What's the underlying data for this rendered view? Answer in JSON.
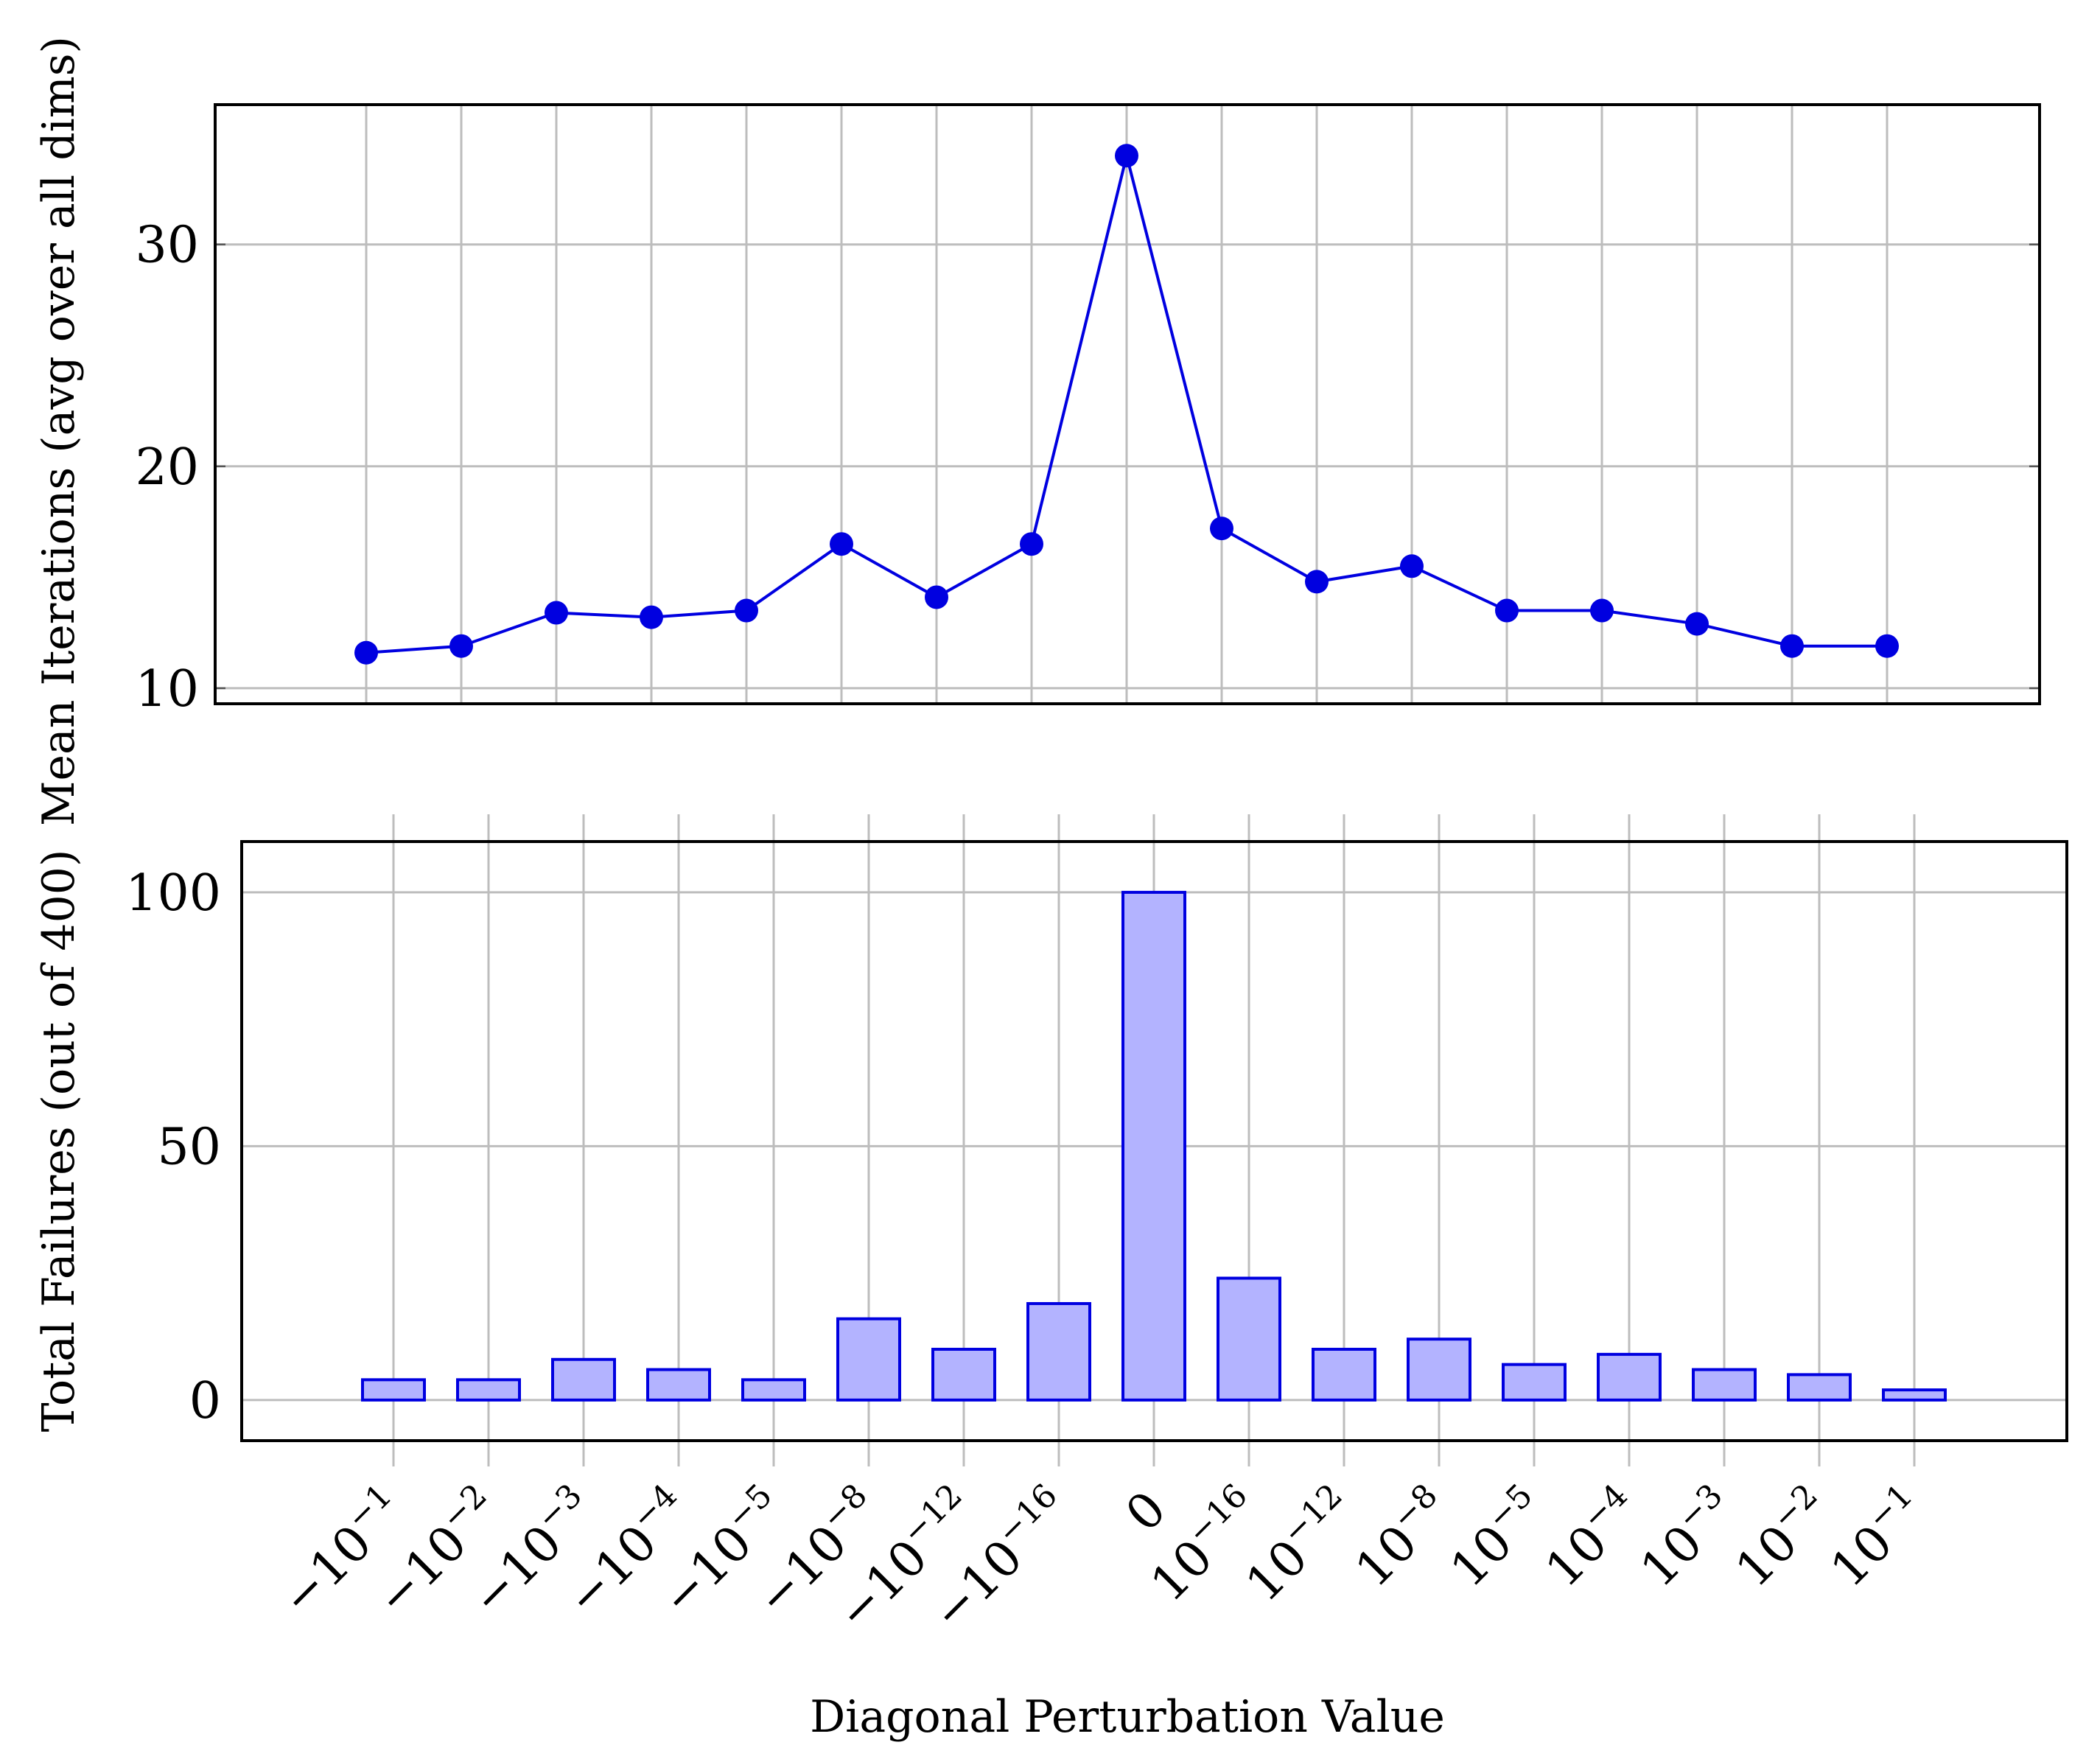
{
  "figure": {
    "xlabel": "Diagonal Perturbation Value"
  },
  "chart_data": [
    {
      "type": "line",
      "ylabel": "Mean Iterations (avg over all dims)",
      "xlabel": "",
      "categories": [
        {
          "sign": "−",
          "base": "10",
          "exp": "−1"
        },
        {
          "sign": "−",
          "base": "10",
          "exp": "−2"
        },
        {
          "sign": "−",
          "base": "10",
          "exp": "−3"
        },
        {
          "sign": "−",
          "base": "10",
          "exp": "−4"
        },
        {
          "sign": "−",
          "base": "10",
          "exp": "−5"
        },
        {
          "sign": "−",
          "base": "10",
          "exp": "−8"
        },
        {
          "sign": "−",
          "base": "10",
          "exp": "−12"
        },
        {
          "sign": "−",
          "base": "10",
          "exp": "−16"
        },
        {
          "sign": "",
          "base": "0",
          "exp": ""
        },
        {
          "sign": "",
          "base": "10",
          "exp": "−16"
        },
        {
          "sign": "",
          "base": "10",
          "exp": "−12"
        },
        {
          "sign": "",
          "base": "10",
          "exp": "−8"
        },
        {
          "sign": "",
          "base": "10",
          "exp": "−5"
        },
        {
          "sign": "",
          "base": "10",
          "exp": "−4"
        },
        {
          "sign": "",
          "base": "10",
          "exp": "−3"
        },
        {
          "sign": "",
          "base": "10",
          "exp": "−2"
        },
        {
          "sign": "",
          "base": "10",
          "exp": "−1"
        }
      ],
      "values": [
        11.6,
        11.9,
        13.4,
        13.2,
        13.5,
        16.5,
        14.1,
        16.5,
        34.0,
        17.2,
        14.8,
        15.5,
        13.5,
        13.5,
        12.9,
        11.9,
        11.9
      ],
      "ylim": [
        9.3,
        36.3
      ],
      "yticks": [
        10,
        20,
        30
      ],
      "grid": true,
      "color": "#0000e0"
    },
    {
      "type": "bar",
      "ylabel": "Total Failures (out of 400)",
      "xlabel": "Diagonal Perturbation Value",
      "values": [
        4,
        4,
        8,
        6,
        4,
        16,
        10,
        19,
        100,
        24,
        10,
        12,
        7,
        9,
        6,
        5,
        2
      ],
      "ylim": [
        -8,
        110
      ],
      "yticks": [
        0,
        50,
        100
      ],
      "grid": true,
      "color": "#0000e0",
      "fill": "#b3b3ff"
    }
  ]
}
